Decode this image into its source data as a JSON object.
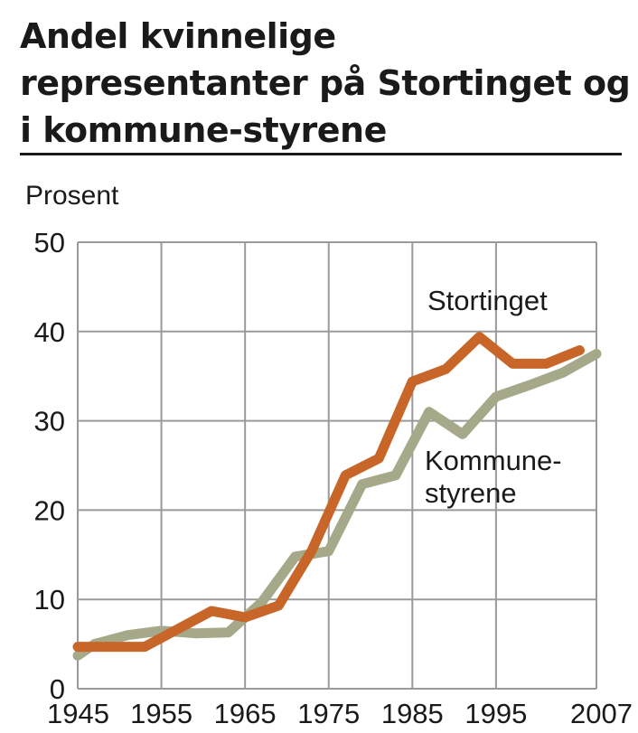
{
  "chart_data": {
    "type": "line",
    "title": "Andel kvinnelige representanter på Stortinget og i kommune-styrene",
    "ylabel": "Prosent",
    "xlabel": "",
    "xlim": [
      1945,
      2007
    ],
    "ylim": [
      0,
      50
    ],
    "x_ticks": [
      1945,
      1955,
      1965,
      1975,
      1985,
      1995,
      2007
    ],
    "y_ticks": [
      0,
      10,
      20,
      30,
      40,
      50
    ],
    "x_tick_labels": [
      "1945",
      "1955",
      "1965",
      "1975",
      "1985",
      "1995",
      "2007"
    ],
    "y_tick_labels": [
      "0",
      "10",
      "20",
      "30",
      "40",
      "50"
    ],
    "grid": true,
    "series": [
      {
        "name": "Stortinget",
        "label_lines": [
          "Stortinget"
        ],
        "color": "#c8662a",
        "x": [
          1945,
          1949,
          1953,
          1957,
          1961,
          1965,
          1969,
          1973,
          1977,
          1981,
          1985,
          1989,
          1993,
          1997,
          2001,
          2005
        ],
        "values": [
          4.7,
          4.7,
          4.7,
          6.7,
          8.7,
          8.0,
          9.3,
          15.5,
          23.9,
          25.8,
          34.4,
          35.8,
          39.4,
          36.4,
          36.4,
          37.9
        ]
      },
      {
        "name": "Kommune-styrene",
        "label_lines": [
          "Kommune-",
          "styrene"
        ],
        "color": "#a5a98a",
        "x": [
          1945,
          1947,
          1951,
          1955,
          1959,
          1963,
          1967,
          1971,
          1975,
          1979,
          1983,
          1987,
          1991,
          1995,
          1999,
          2003,
          2007
        ],
        "values": [
          3.7,
          5.0,
          6.0,
          6.5,
          6.2,
          6.3,
          9.7,
          14.8,
          15.4,
          22.9,
          23.9,
          31.0,
          28.5,
          32.7,
          34.0,
          35.4,
          37.5
        ]
      }
    ]
  }
}
